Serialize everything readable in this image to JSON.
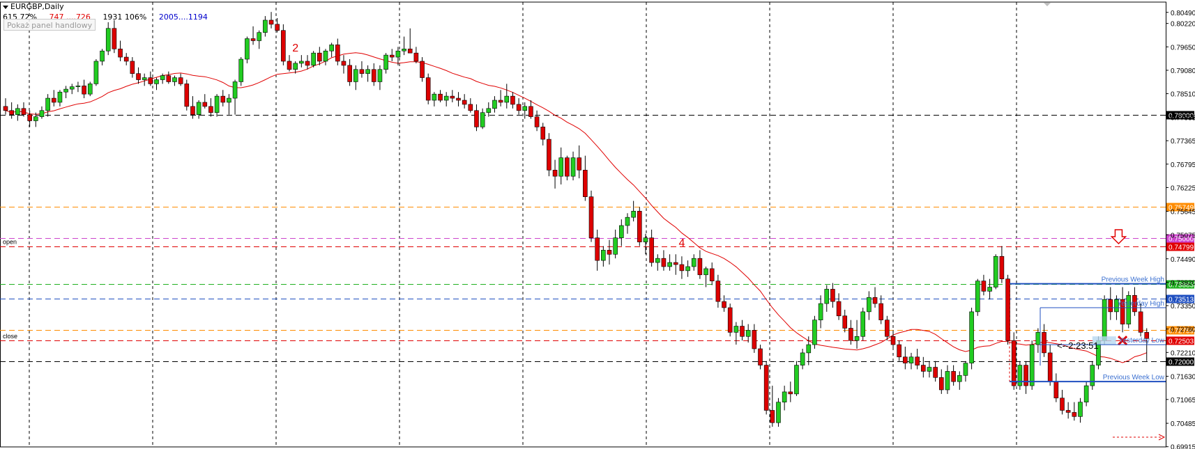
{
  "header": {
    "symbol": "EURGBP,Daily",
    "info_black_1": "615  72%",
    "info_red": "747 ....726",
    "info_black_2": "1931  106%",
    "info_blue": "2005....1194",
    "panel_button": "Pokaż panel handlowy"
  },
  "chart_data": {
    "type": "candlestick",
    "symbol": "EURGBP",
    "timeframe": "Daily",
    "ylim": [
      0.6991,
      0.8074
    ],
    "y_ticks": [
      0.8049,
      0.8022,
      0.7965,
      0.7908,
      0.7851,
      0.77935,
      0.77365,
      0.76795,
      0.76225,
      0.75645,
      0.75075,
      0.7449,
      0.7392,
      0.7335,
      0.7278,
      0.7221,
      0.7163,
      0.71065,
      0.70485,
      0.69915
    ],
    "period_separator_count": 9,
    "price_levels": [
      {
        "price": 0.78,
        "label": "0.78000",
        "color": "#000000",
        "style": "dashed",
        "name": ""
      },
      {
        "price": 0.75749,
        "label": "0.75749",
        "color": "#ff8c00",
        "style": "dashed",
        "name": ""
      },
      {
        "price": 0.75,
        "label": "0.75000",
        "color": "#cc44cc",
        "style": "dashed",
        "name": ""
      },
      {
        "price": 0.74799,
        "label": "0.74799",
        "color": "#e00000",
        "style": "dashed",
        "name": "open"
      },
      {
        "price": 0.73883,
        "label": "0.73883",
        "color": "#20b020",
        "style": "dashed",
        "name": "Previous Week High"
      },
      {
        "price": 0.73513,
        "label": "0.73513",
        "color": "#1f4fc0",
        "style": "dashed",
        "name": ""
      },
      {
        "price": 0.72759,
        "label": "0.72759",
        "color": "#ff8c00",
        "style": "dashed",
        "name": ""
      },
      {
        "price": 0.72503,
        "label": "0.72503",
        "color": "#e00000",
        "style": "dashed",
        "name": "close"
      },
      {
        "price": 0.72,
        "label": "0.72000",
        "color": "#000000",
        "style": "dashed",
        "name": ""
      }
    ],
    "level_texts": {
      "open": "open",
      "close": "close",
      "prev_week_high": "Previous Week High",
      "yesterday_high": "Yesterday High",
      "yesterday_low": "Yesterday Low",
      "prev_week_low": "Previous Week Low"
    },
    "yesterday_high": 0.733,
    "yesterday_low": 0.724,
    "prev_week_low": 0.715,
    "countdown": "<--2:23:51",
    "wave_labels": [
      {
        "text": "2",
        "index": 48
      },
      {
        "text": "4",
        "index": 112
      }
    ],
    "candles": [
      [
        0.782,
        0.784,
        0.78,
        0.781
      ],
      [
        0.781,
        0.783,
        0.779,
        0.78
      ],
      [
        0.78,
        0.7825,
        0.7785,
        0.7815
      ],
      [
        0.7815,
        0.783,
        0.7795,
        0.78
      ],
      [
        0.78,
        0.781,
        0.777,
        0.7785
      ],
      [
        0.7785,
        0.7805,
        0.777,
        0.7795
      ],
      [
        0.7795,
        0.782,
        0.779,
        0.781
      ],
      [
        0.781,
        0.785,
        0.7795,
        0.784
      ],
      [
        0.784,
        0.786,
        0.782,
        0.783
      ],
      [
        0.783,
        0.786,
        0.782,
        0.7855
      ],
      [
        0.7855,
        0.787,
        0.784,
        0.7862
      ],
      [
        0.7862,
        0.7875,
        0.785,
        0.7868
      ],
      [
        0.7868,
        0.788,
        0.7855,
        0.787
      ],
      [
        0.787,
        0.7885,
        0.784,
        0.785
      ],
      [
        0.785,
        0.788,
        0.7845,
        0.7875
      ],
      [
        0.7875,
        0.7935,
        0.787,
        0.793
      ],
      [
        0.793,
        0.796,
        0.792,
        0.7955
      ],
      [
        0.7955,
        0.8025,
        0.7945,
        0.801
      ],
      [
        0.801,
        0.803,
        0.795,
        0.796
      ],
      [
        0.796,
        0.798,
        0.793,
        0.794
      ],
      [
        0.794,
        0.795,
        0.792,
        0.793
      ],
      [
        0.793,
        0.794,
        0.789,
        0.79
      ],
      [
        0.79,
        0.7915,
        0.7875,
        0.7885
      ],
      [
        0.7885,
        0.79,
        0.787,
        0.789
      ],
      [
        0.789,
        0.7905,
        0.787,
        0.7875
      ],
      [
        0.7875,
        0.789,
        0.786,
        0.7885
      ],
      [
        0.7885,
        0.79,
        0.7875,
        0.7895
      ],
      [
        0.7895,
        0.7905,
        0.7875,
        0.788
      ],
      [
        0.788,
        0.7895,
        0.787,
        0.789
      ],
      [
        0.789,
        0.79,
        0.787,
        0.7875
      ],
      [
        0.7875,
        0.7885,
        0.781,
        0.782
      ],
      [
        0.782,
        0.7845,
        0.779,
        0.78
      ],
      [
        0.78,
        0.7835,
        0.779,
        0.783
      ],
      [
        0.783,
        0.785,
        0.7815,
        0.782
      ],
      [
        0.782,
        0.784,
        0.7795,
        0.7805
      ],
      [
        0.7805,
        0.785,
        0.7795,
        0.7845
      ],
      [
        0.7845,
        0.786,
        0.782,
        0.783
      ],
      [
        0.783,
        0.785,
        0.78,
        0.784
      ],
      [
        0.784,
        0.7885,
        0.78,
        0.788
      ],
      [
        0.788,
        0.794,
        0.787,
        0.7935
      ],
      [
        0.7935,
        0.799,
        0.7925,
        0.7985
      ],
      [
        0.7985,
        0.8015,
        0.797,
        0.798
      ],
      [
        0.798,
        0.8005,
        0.796,
        0.8
      ],
      [
        0.8,
        0.804,
        0.799,
        0.803
      ],
      [
        0.803,
        0.805,
        0.801,
        0.802
      ],
      [
        0.802,
        0.8035,
        0.8,
        0.8005
      ],
      [
        0.8005,
        0.802,
        0.792,
        0.793
      ],
      [
        0.793,
        0.7945,
        0.7905,
        0.791
      ],
      [
        0.791,
        0.793,
        0.79,
        0.7925
      ],
      [
        0.7925,
        0.7945,
        0.7915,
        0.793
      ],
      [
        0.793,
        0.7945,
        0.791,
        0.792
      ],
      [
        0.792,
        0.7955,
        0.7915,
        0.795
      ],
      [
        0.795,
        0.7965,
        0.792,
        0.793
      ],
      [
        0.793,
        0.796,
        0.792,
        0.7955
      ],
      [
        0.7955,
        0.7975,
        0.794,
        0.797
      ],
      [
        0.797,
        0.7985,
        0.792,
        0.793
      ],
      [
        0.793,
        0.7945,
        0.79,
        0.792
      ],
      [
        0.792,
        0.7935,
        0.787,
        0.788
      ],
      [
        0.788,
        0.792,
        0.786,
        0.791
      ],
      [
        0.791,
        0.793,
        0.789,
        0.79
      ],
      [
        0.79,
        0.792,
        0.788,
        0.791
      ],
      [
        0.791,
        0.7925,
        0.787,
        0.788
      ],
      [
        0.788,
        0.792,
        0.786,
        0.791
      ],
      [
        0.791,
        0.795,
        0.79,
        0.7945
      ],
      [
        0.7945,
        0.796,
        0.793,
        0.794
      ],
      [
        0.794,
        0.7965,
        0.792,
        0.7955
      ],
      [
        0.7955,
        0.799,
        0.7945,
        0.796
      ],
      [
        0.796,
        0.801,
        0.795,
        0.795
      ],
      [
        0.795,
        0.7965,
        0.7925,
        0.793
      ],
      [
        0.793,
        0.794,
        0.788,
        0.789
      ],
      [
        0.789,
        0.79,
        0.7825,
        0.7835
      ],
      [
        0.7835,
        0.7855,
        0.782,
        0.785
      ],
      [
        0.785,
        0.786,
        0.783,
        0.7835
      ],
      [
        0.7835,
        0.7855,
        0.782,
        0.7845
      ],
      [
        0.7845,
        0.786,
        0.783,
        0.784
      ],
      [
        0.784,
        0.7855,
        0.782,
        0.7835
      ],
      [
        0.7835,
        0.785,
        0.7815,
        0.7825
      ],
      [
        0.7825,
        0.784,
        0.7805,
        0.781
      ],
      [
        0.781,
        0.7825,
        0.776,
        0.777
      ],
      [
        0.777,
        0.7815,
        0.7765,
        0.7805
      ],
      [
        0.7805,
        0.783,
        0.7795,
        0.7815
      ],
      [
        0.7815,
        0.7845,
        0.7805,
        0.7835
      ],
      [
        0.7835,
        0.786,
        0.782,
        0.783
      ],
      [
        0.783,
        0.7875,
        0.7815,
        0.7845
      ],
      [
        0.7845,
        0.7855,
        0.7815,
        0.7825
      ],
      [
        0.7825,
        0.784,
        0.78,
        0.781
      ],
      [
        0.781,
        0.783,
        0.779,
        0.782
      ],
      [
        0.782,
        0.7835,
        0.779,
        0.7795
      ],
      [
        0.7795,
        0.781,
        0.776,
        0.777
      ],
      [
        0.777,
        0.778,
        0.7725,
        0.774
      ],
      [
        0.774,
        0.7755,
        0.765,
        0.7665
      ],
      [
        0.7665,
        0.769,
        0.762,
        0.765
      ],
      [
        0.765,
        0.772,
        0.763,
        0.7695
      ],
      [
        0.7695,
        0.77,
        0.764,
        0.765
      ],
      [
        0.765,
        0.771,
        0.764,
        0.7695
      ],
      [
        0.7695,
        0.7725,
        0.7645,
        0.7665
      ],
      [
        0.7665,
        0.77,
        0.759,
        0.76
      ],
      [
        0.76,
        0.7615,
        0.749,
        0.75
      ],
      [
        0.75,
        0.752,
        0.742,
        0.7445
      ],
      [
        0.7445,
        0.748,
        0.743,
        0.747
      ],
      [
        0.747,
        0.7495,
        0.7435,
        0.746
      ],
      [
        0.746,
        0.752,
        0.745,
        0.75
      ],
      [
        0.75,
        0.7545,
        0.748,
        0.753
      ],
      [
        0.753,
        0.756,
        0.751,
        0.755
      ],
      [
        0.755,
        0.759,
        0.754,
        0.7565
      ],
      [
        0.7565,
        0.7575,
        0.748,
        0.749
      ],
      [
        0.749,
        0.751,
        0.746,
        0.75
      ],
      [
        0.75,
        0.752,
        0.743,
        0.744
      ],
      [
        0.744,
        0.746,
        0.742,
        0.745
      ],
      [
        0.745,
        0.747,
        0.742,
        0.743
      ],
      [
        0.743,
        0.746,
        0.742,
        0.744
      ],
      [
        0.744,
        0.746,
        0.741,
        0.7435
      ],
      [
        0.7435,
        0.7455,
        0.74,
        0.742
      ],
      [
        0.742,
        0.7445,
        0.7405,
        0.743
      ],
      [
        0.743,
        0.746,
        0.742,
        0.745
      ],
      [
        0.745,
        0.747,
        0.74,
        0.741
      ],
      [
        0.741,
        0.743,
        0.738,
        0.7425
      ],
      [
        0.7425,
        0.744,
        0.7385,
        0.7395
      ],
      [
        0.7395,
        0.741,
        0.733,
        0.7345
      ],
      [
        0.7345,
        0.736,
        0.732,
        0.733
      ],
      [
        0.733,
        0.734,
        0.726,
        0.727
      ],
      [
        0.727,
        0.7295,
        0.724,
        0.7285
      ],
      [
        0.7285,
        0.73,
        0.725,
        0.726
      ],
      [
        0.726,
        0.729,
        0.7245,
        0.7275
      ],
      [
        0.7275,
        0.729,
        0.722,
        0.723
      ],
      [
        0.723,
        0.724,
        0.718,
        0.719
      ],
      [
        0.719,
        0.72,
        0.707,
        0.708
      ],
      [
        0.708,
        0.714,
        0.704,
        0.705
      ],
      [
        0.705,
        0.711,
        0.704,
        0.71
      ],
      [
        0.71,
        0.714,
        0.708,
        0.7125
      ],
      [
        0.7125,
        0.715,
        0.71,
        0.712
      ],
      [
        0.712,
        0.72,
        0.7115,
        0.719
      ],
      [
        0.719,
        0.723,
        0.718,
        0.722
      ],
      [
        0.722,
        0.726,
        0.719,
        0.724
      ],
      [
        0.724,
        0.731,
        0.723,
        0.73
      ],
      [
        0.73,
        0.736,
        0.728,
        0.734
      ],
      [
        0.734,
        0.7385,
        0.732,
        0.7375
      ],
      [
        0.7375,
        0.739,
        0.733,
        0.7345
      ],
      [
        0.7345,
        0.7365,
        0.73,
        0.731
      ],
      [
        0.731,
        0.7325,
        0.727,
        0.728
      ],
      [
        0.728,
        0.73,
        0.724,
        0.725
      ],
      [
        0.725,
        0.73,
        0.723,
        0.726
      ],
      [
        0.726,
        0.733,
        0.725,
        0.732
      ],
      [
        0.732,
        0.737,
        0.73,
        0.7355
      ],
      [
        0.7355,
        0.738,
        0.733,
        0.734
      ],
      [
        0.734,
        0.736,
        0.729,
        0.73
      ],
      [
        0.73,
        0.731,
        0.725,
        0.726
      ],
      [
        0.726,
        0.7275,
        0.723,
        0.724
      ],
      [
        0.724,
        0.725,
        0.72,
        0.721
      ],
      [
        0.721,
        0.7235,
        0.718,
        0.7195
      ],
      [
        0.7195,
        0.722,
        0.718,
        0.721
      ],
      [
        0.721,
        0.723,
        0.718,
        0.719
      ],
      [
        0.719,
        0.721,
        0.716,
        0.7175
      ],
      [
        0.7175,
        0.72,
        0.716,
        0.7185
      ],
      [
        0.7185,
        0.72,
        0.715,
        0.716
      ],
      [
        0.716,
        0.718,
        0.712,
        0.713
      ],
      [
        0.713,
        0.719,
        0.712,
        0.7175
      ],
      [
        0.7175,
        0.719,
        0.714,
        0.715
      ],
      [
        0.715,
        0.7175,
        0.713,
        0.7165
      ],
      [
        0.7165,
        0.72,
        0.715,
        0.7195
      ],
      [
        0.7195,
        0.733,
        0.718,
        0.732
      ],
      [
        0.732,
        0.74,
        0.731,
        0.7395
      ],
      [
        0.7395,
        0.741,
        0.736,
        0.737
      ],
      [
        0.737,
        0.74,
        0.735,
        0.738
      ],
      [
        0.738,
        0.746,
        0.7375,
        0.7455
      ],
      [
        0.7455,
        0.748,
        0.739,
        0.74
      ],
      [
        0.74,
        0.741,
        0.724,
        0.725
      ],
      [
        0.725,
        0.727,
        0.713,
        0.714
      ],
      [
        0.714,
        0.72,
        0.713,
        0.719
      ],
      [
        0.719,
        0.72,
        0.712,
        0.714
      ],
      [
        0.714,
        0.725,
        0.713,
        0.724
      ],
      [
        0.724,
        0.728,
        0.722,
        0.727
      ],
      [
        0.727,
        0.729,
        0.721,
        0.722
      ],
      [
        0.722,
        0.724,
        0.714,
        0.715
      ],
      [
        0.715,
        0.717,
        0.71,
        0.711
      ],
      [
        0.711,
        0.713,
        0.707,
        0.708
      ],
      [
        0.708,
        0.71,
        0.706,
        0.7075
      ],
      [
        0.7075,
        0.71,
        0.7055,
        0.7065
      ],
      [
        0.7065,
        0.711,
        0.705,
        0.71
      ],
      [
        0.71,
        0.715,
        0.709,
        0.714
      ],
      [
        0.714,
        0.72,
        0.713,
        0.719
      ],
      [
        0.719,
        0.726,
        0.718,
        0.725
      ],
      [
        0.725,
        0.736,
        0.724,
        0.735
      ],
      [
        0.735,
        0.738,
        0.73,
        0.732
      ],
      [
        0.732,
        0.736,
        0.73,
        0.735
      ],
      [
        0.735,
        0.738,
        0.727,
        0.729
      ],
      [
        0.729,
        0.737,
        0.728,
        0.736
      ],
      [
        0.736,
        0.738,
        0.731,
        0.732
      ],
      [
        0.732,
        0.734,
        0.726,
        0.727
      ],
      [
        0.727,
        0.728,
        0.72,
        0.7255
      ]
    ]
  }
}
